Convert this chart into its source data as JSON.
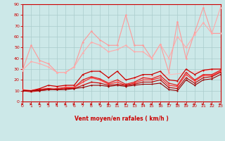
{
  "xlabel": "Vent moyen/en rafales ( km/h )",
  "xlim": [
    0,
    23
  ],
  "ylim": [
    0,
    90
  ],
  "yticks": [
    0,
    10,
    20,
    30,
    40,
    50,
    60,
    70,
    80,
    90
  ],
  "xticks": [
    0,
    1,
    2,
    3,
    4,
    5,
    6,
    7,
    8,
    9,
    10,
    11,
    12,
    13,
    14,
    15,
    16,
    17,
    18,
    19,
    20,
    21,
    22,
    23
  ],
  "bg_color": "#cce8e8",
  "grid_color": "#aacccc",
  "axis_color": "#cc0000",
  "label_color": "#cc0000",
  "lines": [
    {
      "x": [
        0,
        1,
        2,
        3,
        4,
        5,
        6,
        7,
        8,
        9,
        10,
        11,
        12,
        13,
        14,
        15,
        16,
        17,
        18,
        19,
        20,
        21,
        22,
        23
      ],
      "y": [
        29,
        52,
        38,
        35,
        27,
        27,
        32,
        55,
        65,
        57,
        52,
        52,
        80,
        52,
        52,
        40,
        53,
        27,
        74,
        40,
        64,
        87,
        63,
        63
      ],
      "color": "#ff9999",
      "lw": 0.8,
      "marker": "o",
      "ms": 1.8
    },
    {
      "x": [
        0,
        1,
        2,
        3,
        4,
        5,
        6,
        7,
        8,
        9,
        10,
        11,
        12,
        13,
        14,
        15,
        16,
        17,
        18,
        19,
        20,
        21,
        22,
        23
      ],
      "y": [
        29,
        37,
        35,
        32,
        27,
        27,
        32,
        45,
        55,
        52,
        46,
        48,
        52,
        46,
        46,
        40,
        53,
        40,
        60,
        50,
        62,
        73,
        63,
        87
      ],
      "color": "#ffaaaa",
      "lw": 0.8,
      "marker": "o",
      "ms": 1.8
    },
    {
      "x": [
        0,
        1,
        2,
        3,
        4,
        5,
        6,
        7,
        8,
        9,
        10,
        11,
        12,
        13,
        14,
        15,
        16,
        17,
        18,
        19,
        20,
        21,
        22,
        23
      ],
      "y": [
        10,
        10,
        12,
        15,
        14,
        15,
        15,
        25,
        28,
        28,
        22,
        28,
        20,
        22,
        25,
        25,
        28,
        20,
        19,
        30,
        25,
        29,
        30,
        30
      ],
      "color": "#cc0000",
      "lw": 0.9,
      "marker": "o",
      "ms": 1.5
    },
    {
      "x": [
        0,
        1,
        2,
        3,
        4,
        5,
        6,
        7,
        8,
        9,
        10,
        11,
        12,
        13,
        14,
        15,
        16,
        17,
        18,
        19,
        20,
        21,
        22,
        23
      ],
      "y": [
        10,
        9,
        10,
        11,
        12,
        13,
        13,
        20,
        23,
        21,
        17,
        20,
        16,
        18,
        22,
        21,
        24,
        17,
        15,
        27,
        20,
        25,
        25,
        29
      ],
      "color": "#dd2222",
      "lw": 0.9,
      "marker": "o",
      "ms": 1.5
    },
    {
      "x": [
        0,
        1,
        2,
        3,
        4,
        5,
        6,
        7,
        8,
        9,
        10,
        11,
        12,
        13,
        14,
        15,
        16,
        17,
        18,
        19,
        20,
        21,
        22,
        23
      ],
      "y": [
        11,
        10,
        11,
        12,
        11,
        13,
        13,
        18,
        22,
        20,
        16,
        18,
        15,
        17,
        20,
        20,
        22,
        15,
        14,
        25,
        19,
        24,
        24,
        28
      ],
      "color": "#ff3333",
      "lw": 0.9,
      "marker": "o",
      "ms": 1.5
    },
    {
      "x": [
        0,
        1,
        2,
        3,
        4,
        5,
        6,
        7,
        8,
        9,
        10,
        11,
        12,
        13,
        14,
        15,
        16,
        17,
        18,
        19,
        20,
        21,
        22,
        23
      ],
      "y": [
        10,
        10,
        11,
        12,
        11,
        12,
        12,
        15,
        18,
        17,
        15,
        16,
        15,
        16,
        18,
        18,
        20,
        13,
        12,
        22,
        17,
        22,
        23,
        27
      ],
      "color": "#bb0000",
      "lw": 0.8,
      "marker": "o",
      "ms": 1.5
    },
    {
      "x": [
        0,
        1,
        2,
        3,
        4,
        5,
        6,
        7,
        8,
        9,
        10,
        11,
        12,
        13,
        14,
        15,
        16,
        17,
        18,
        19,
        20,
        21,
        22,
        23
      ],
      "y": [
        10,
        10,
        10,
        11,
        11,
        11,
        12,
        13,
        15,
        15,
        14,
        15,
        14,
        15,
        16,
        16,
        17,
        11,
        10,
        20,
        15,
        20,
        21,
        25
      ],
      "color": "#990000",
      "lw": 0.8,
      "marker": "o",
      "ms": 1.5
    },
    {
      "x": [
        0,
        23
      ],
      "y": [
        10,
        30
      ],
      "color": "#ffbbbb",
      "lw": 0.8,
      "marker": null,
      "ms": 0
    }
  ],
  "arrow_color": "#cc0000",
  "arrow_angles": [
    90,
    90,
    90,
    90,
    90,
    85,
    90,
    90,
    90,
    85,
    90,
    90,
    85,
    90,
    90,
    90,
    90,
    85,
    85,
    70,
    65,
    65,
    65,
    65
  ]
}
